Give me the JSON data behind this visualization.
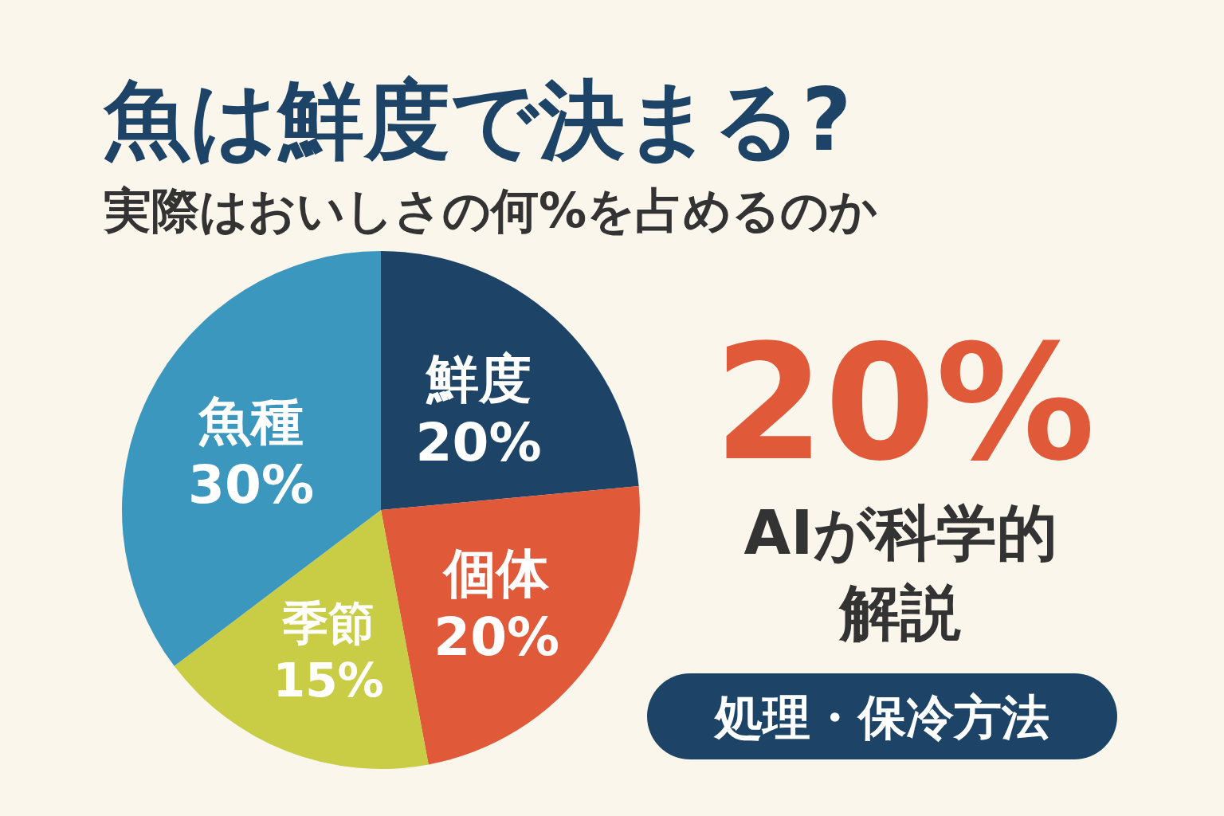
{
  "chart_data": {
    "type": "pie",
    "title": "魚は鮮度で決まる?",
    "subtitle": "実際はおいしさの何%を占めるのか",
    "categories": [
      "鮮度",
      "個体",
      "季節",
      "魚種"
    ],
    "values": [
      20,
      20,
      15,
      30
    ],
    "value_labels": [
      "20%",
      "20%",
      "15%",
      "30%"
    ],
    "colors": [
      "#1d4466",
      "#e05a3a",
      "#c9cc45",
      "#3b97bd"
    ],
    "annotations": [
      "20%",
      "AIが科学的解説",
      "処理・保冷方法"
    ]
  }
}
